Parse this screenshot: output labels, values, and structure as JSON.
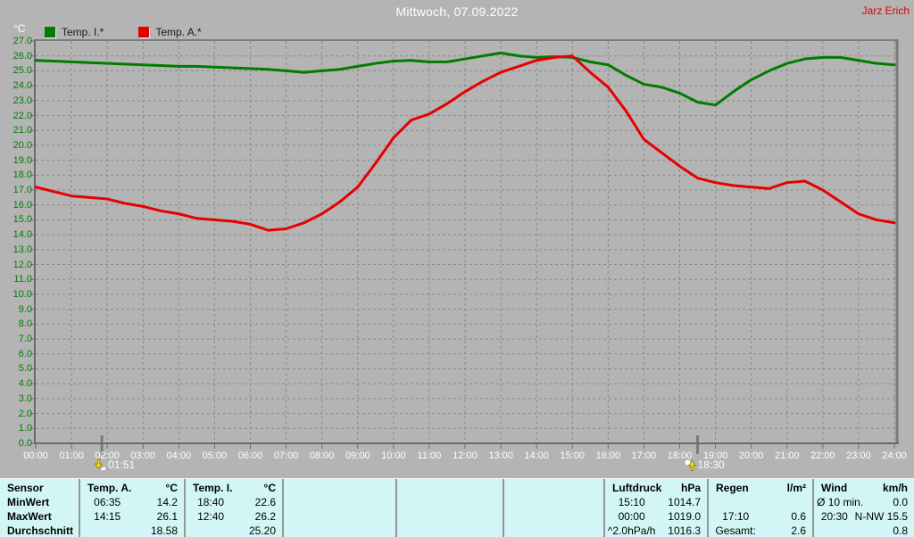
{
  "window": {
    "title": "Mittwoch, 07.09.2022",
    "watermark": "Jarz Erich"
  },
  "legend": {
    "axis_unit": "°C",
    "items": [
      {
        "label": "Temp. I.*",
        "color": "#007c00"
      },
      {
        "label": "Temp. A.*",
        "color": "#e60000"
      }
    ]
  },
  "chart_data": {
    "type": "line",
    "title": "Mittwoch, 07.09.2022",
    "xlabel": "",
    "ylabel": "°C",
    "ylim": [
      0,
      27
    ],
    "ytick_step": 1.0,
    "xlim": [
      0,
      24
    ],
    "grid": "dashed",
    "legend_position": "top-left",
    "ytick_labels": [
      "27.0",
      "26.0",
      "25.0",
      "24.0",
      "23.0",
      "22.0",
      "21.0",
      "20.0",
      "19.0",
      "18.0",
      "17.0",
      "16.0",
      "15.0",
      "14.0",
      "13.0",
      "12.0",
      "11.0",
      "10.0",
      "9.0",
      "8.0",
      "7.0",
      "6.0",
      "5.0",
      "4.0",
      "3.0",
      "2.0",
      "1.0",
      "0.0"
    ],
    "xtick_labels": [
      "00:00",
      "01:00",
      "02:00",
      "03:00",
      "04:00",
      "05:00",
      "06:00",
      "07:00",
      "08:00",
      "09:00",
      "10:00",
      "11:00",
      "12:00",
      "13:00",
      "14:00",
      "15:00",
      "16:00",
      "17:00",
      "18:00",
      "19:00",
      "20:00",
      "21:00",
      "22:00",
      "23:00",
      "24:00"
    ],
    "x_hours": [
      0,
      0.5,
      1,
      1.5,
      2,
      2.5,
      3,
      3.5,
      4,
      4.5,
      5,
      5.5,
      6,
      6.5,
      7,
      7.5,
      8,
      8.5,
      9,
      9.5,
      10,
      10.5,
      11,
      11.5,
      12,
      12.5,
      13,
      13.5,
      14,
      14.5,
      15,
      15.5,
      16,
      16.5,
      17,
      17.5,
      18,
      18.5,
      19,
      19.5,
      20,
      20.5,
      21,
      21.5,
      22,
      22.5,
      23,
      23.5,
      24
    ],
    "series": [
      {
        "name": "Temp. I.*",
        "color": "#007c00",
        "values": [
          25.7,
          25.65,
          25.6,
          25.55,
          25.5,
          25.45,
          25.4,
          25.35,
          25.3,
          25.3,
          25.25,
          25.2,
          25.15,
          25.1,
          25.0,
          24.9,
          25.0,
          25.1,
          25.3,
          25.5,
          25.65,
          25.7,
          25.6,
          25.6,
          25.8,
          26.0,
          26.2,
          26.0,
          25.9,
          25.95,
          25.9,
          25.6,
          25.4,
          24.7,
          24.1,
          23.9,
          23.5,
          22.9,
          22.7,
          23.6,
          24.4,
          25.0,
          25.5,
          25.8,
          25.9,
          25.9,
          25.7,
          25.5,
          25.4
        ]
      },
      {
        "name": "Temp. A.*",
        "color": "#e60000",
        "values": [
          17.2,
          16.9,
          16.6,
          16.5,
          16.4,
          16.1,
          15.9,
          15.6,
          15.4,
          15.1,
          15.0,
          14.9,
          14.7,
          14.3,
          14.4,
          14.8,
          15.4,
          16.2,
          17.2,
          18.8,
          20.5,
          21.7,
          22.1,
          22.8,
          23.6,
          24.3,
          24.9,
          25.3,
          25.7,
          25.9,
          26.0,
          24.9,
          23.9,
          22.3,
          20.4,
          19.5,
          18.6,
          17.8,
          17.5,
          17.3,
          17.2,
          17.1,
          17.5,
          17.6,
          17.0,
          16.2,
          15.4,
          15.0,
          14.8
        ]
      }
    ],
    "markers": [
      {
        "time": "01:51",
        "hour": 1.85,
        "icon": "sun-down-icon"
      },
      {
        "time": "18:30",
        "hour": 18.5,
        "icon": "sun-up-icon"
      }
    ]
  },
  "stats_table": {
    "row_labels": [
      "Sensor",
      "MinWert",
      "MaxWert",
      "Durchschnitt"
    ],
    "columns": [
      {
        "name": "Temp. A.",
        "unit": "°C",
        "min_time": "06:35",
        "min_value": "14.2",
        "max_time": "14:15",
        "max_value": "26.1",
        "avg_label": "",
        "avg_value": "18.58"
      },
      {
        "name": "Temp. I.",
        "unit": "°C",
        "min_time": "18:40",
        "min_value": "22.6",
        "max_time": "12:40",
        "max_value": "26.2",
        "avg_label": "",
        "avg_value": "25.20"
      },
      {
        "name": "Luftdruck",
        "unit": "hPa",
        "min_time": "15:10",
        "min_value": "1014.7",
        "max_time": "00:00",
        "max_value": "1019.0",
        "avg_label": "^2.0hPa/h",
        "avg_value": "1016.3"
      },
      {
        "name": "Regen",
        "unit": "l/m²",
        "min_time": "",
        "min_value": "",
        "max_time": "17:10",
        "max_value": "0.6",
        "avg_label": "Gesamt:",
        "avg_value": "2.6"
      },
      {
        "name": "Wind",
        "unit": "km/h",
        "min_time": "Ø 10 min.",
        "min_value": "0.0",
        "max_time": "20:30",
        "max_value": "N-NW 15.5",
        "avg_label": "",
        "avg_value": "0.8"
      }
    ]
  },
  "colors": {
    "background": "#b4b4b4",
    "grid": "#8a8a8a",
    "axis": "#6b6b6b",
    "frame": "#7a7a7a",
    "temp_inside": "#007c00",
    "temp_outside": "#e60000",
    "title_text": "#ffffff",
    "watermark_text": "#d80000",
    "table_background": "#d2f6f6"
  }
}
